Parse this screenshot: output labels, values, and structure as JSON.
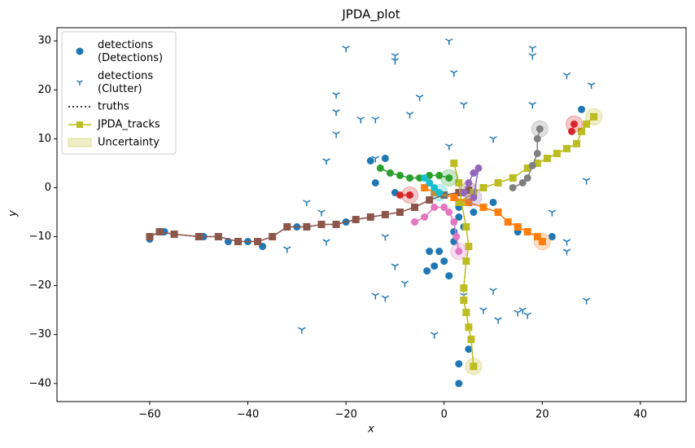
{
  "chart_data": {
    "type": "scatter",
    "title": "JPDA_plot",
    "x_label": "x",
    "y_label": "y",
    "xlim": [
      -78.9,
      49.3
    ],
    "ylim": [
      -43.7,
      32.7
    ],
    "xticks": [
      {
        "value": -60,
        "label": "−60"
      },
      {
        "value": -40,
        "label": "−40"
      },
      {
        "value": -20,
        "label": "−20"
      },
      0,
      20,
      40
    ],
    "yticks": [
      {
        "value": -40,
        "label": "−40"
      },
      {
        "value": -30,
        "label": "−30"
      },
      {
        "value": -20,
        "label": "−20"
      },
      {
        "value": -10,
        "label": "−10"
      },
      0,
      10,
      20,
      30
    ],
    "legend_position": "upper left",
    "legend": [
      {
        "name": "detections\n(Detections)",
        "marker": "circle",
        "color": "#1f77b4"
      },
      {
        "name": "detections\n(Clutter)",
        "marker": "tri",
        "color": "#1f77b4"
      },
      {
        "name": "truths",
        "marker": "dotted",
        "color": "#000000"
      },
      {
        "name": "JPDA_tracks",
        "marker": "square-line",
        "color": "#bcbd22"
      },
      {
        "name": "Uncertainty",
        "marker": "patch",
        "color": "#bcbd22"
      }
    ],
    "series": [
      {
        "kind": "detections",
        "marker": "circle",
        "color": "#1f77b4",
        "x": [
          -60,
          -57,
          -49,
          -44,
          -40,
          -37,
          -30,
          -20,
          -15,
          -10,
          -3,
          -2,
          -1,
          0,
          -3.5,
          3,
          3,
          5,
          4,
          3,
          2,
          8,
          10,
          15,
          22,
          28,
          -12,
          -14,
          6,
          1,
          2,
          3
        ],
        "y": [
          -10.5,
          -9,
          -10,
          -11,
          -11,
          -12,
          -8,
          -7,
          5.5,
          -1,
          -13,
          -16,
          -13,
          -15,
          -17,
          -36,
          -40,
          -33,
          -8,
          -6,
          -9,
          -4,
          -3,
          -9,
          -10,
          16,
          6,
          1,
          -5,
          -18,
          -11,
          -4
        ]
      },
      {
        "kind": "clutter",
        "marker": "tri",
        "color": "#1f77b4",
        "x": [
          1,
          -20,
          18,
          18,
          -10,
          -10,
          2,
          -5,
          25,
          30,
          -22,
          -22,
          -17,
          -14,
          4,
          18,
          -7,
          -22,
          -24,
          -14,
          10,
          -29,
          -28,
          -25,
          -32,
          -24,
          -10,
          -8,
          -14,
          -12,
          4,
          10,
          -2,
          8,
          11,
          15,
          16,
          17,
          29,
          25,
          25,
          29,
          22,
          1,
          -12
        ],
        "y": [
          30,
          28.5,
          28.5,
          27,
          27,
          26,
          23.5,
          18.5,
          23,
          21,
          19,
          15.5,
          14,
          14,
          17,
          17,
          15,
          11,
          5.5,
          6,
          10,
          -29,
          -3,
          -5,
          -12.5,
          -11,
          -16,
          -19.5,
          -22,
          -22.5,
          -22,
          -21,
          -30,
          -25,
          -27,
          -25.5,
          -25,
          -26,
          -23,
          -11,
          -13,
          1.5,
          -5,
          8.5,
          -10
        ]
      },
      {
        "kind": "track",
        "marker": "square",
        "color": "#8c564b",
        "x": [
          -60,
          -58,
          -55,
          -50,
          -46,
          -42,
          -38,
          -35,
          -32,
          -28,
          -25,
          -22,
          -18,
          -15,
          -12,
          -9,
          -6,
          -3,
          0,
          3,
          5
        ],
        "y": [
          -10,
          -9,
          -9.5,
          -10,
          -10,
          -11,
          -11,
          -10,
          -8,
          -8,
          -7.5,
          -7.5,
          -6.5,
          -6,
          -5.5,
          -5,
          -4,
          -2.5,
          -1.5,
          -1,
          -0.5
        ]
      },
      {
        "kind": "track",
        "marker": "square",
        "color": "#bcbd22",
        "x": [
          2,
          3,
          3.5,
          4.5,
          5,
          4.5,
          4,
          4,
          4.5,
          5,
          5.5,
          6
        ],
        "y": [
          5,
          1,
          -3,
          -8,
          -12,
          -15,
          -20.5,
          -23,
          -25.5,
          -28.5,
          -31,
          -36.5
        ]
      },
      {
        "kind": "track",
        "marker": "square",
        "color": "#bcbd22",
        "x": [
          3,
          6,
          8,
          11,
          14,
          17,
          19,
          21,
          23,
          25,
          27,
          28,
          29,
          30.5
        ],
        "y": [
          -3,
          -1,
          0,
          1,
          2,
          4,
          5,
          6,
          7,
          8,
          9,
          11.5,
          13,
          14.5
        ]
      },
      {
        "kind": "track",
        "marker": "square",
        "color": "#ff7f0e",
        "x": [
          -4,
          -2,
          2,
          5,
          8,
          11,
          13,
          15,
          17,
          19,
          20
        ],
        "y": [
          0,
          -1,
          -2,
          -3,
          -4,
          -5,
          -7,
          -8,
          -9,
          -10,
          -11
        ]
      },
      {
        "kind": "track",
        "marker": "circle",
        "color": "#2ca02c",
        "x": [
          -13,
          -11,
          -9,
          -7,
          -5,
          -3,
          -1,
          1
        ],
        "y": [
          4,
          3,
          2.5,
          2,
          2,
          2.5,
          2.5,
          2
        ]
      },
      {
        "kind": "track",
        "marker": "circle",
        "color": "#e377c2",
        "x": [
          -6,
          -4,
          -2,
          0,
          1,
          2,
          2.5,
          3
        ],
        "y": [
          -7,
          -6,
          -4,
          -4,
          -5,
          -7,
          -10,
          -13
        ]
      },
      {
        "kind": "track",
        "marker": "circle",
        "color": "#9467bd",
        "x": [
          4,
          5,
          6,
          7,
          6
        ],
        "y": [
          -1,
          1,
          3,
          4,
          -2
        ]
      },
      {
        "kind": "track",
        "marker": "circle",
        "color": "#7f7f7f",
        "x": [
          14,
          16,
          17,
          18,
          19,
          19,
          19.5
        ],
        "y": [
          0,
          1,
          2,
          4.5,
          7,
          10,
          12
        ]
      },
      {
        "kind": "track",
        "marker": "circle",
        "color": "#d62728",
        "x": [
          -9,
          -7
        ],
        "y": [
          -1.5,
          -1.5
        ]
      },
      {
        "kind": "track",
        "marker": "circle",
        "color": "#d62728",
        "x": [
          26,
          26.5
        ],
        "y": [
          11.5,
          13
        ]
      },
      {
        "kind": "track",
        "marker": "circle",
        "color": "#17becf",
        "x": [
          -4,
          -3,
          -2,
          -1
        ],
        "y": [
          2,
          1,
          0,
          -1
        ]
      }
    ]
  }
}
